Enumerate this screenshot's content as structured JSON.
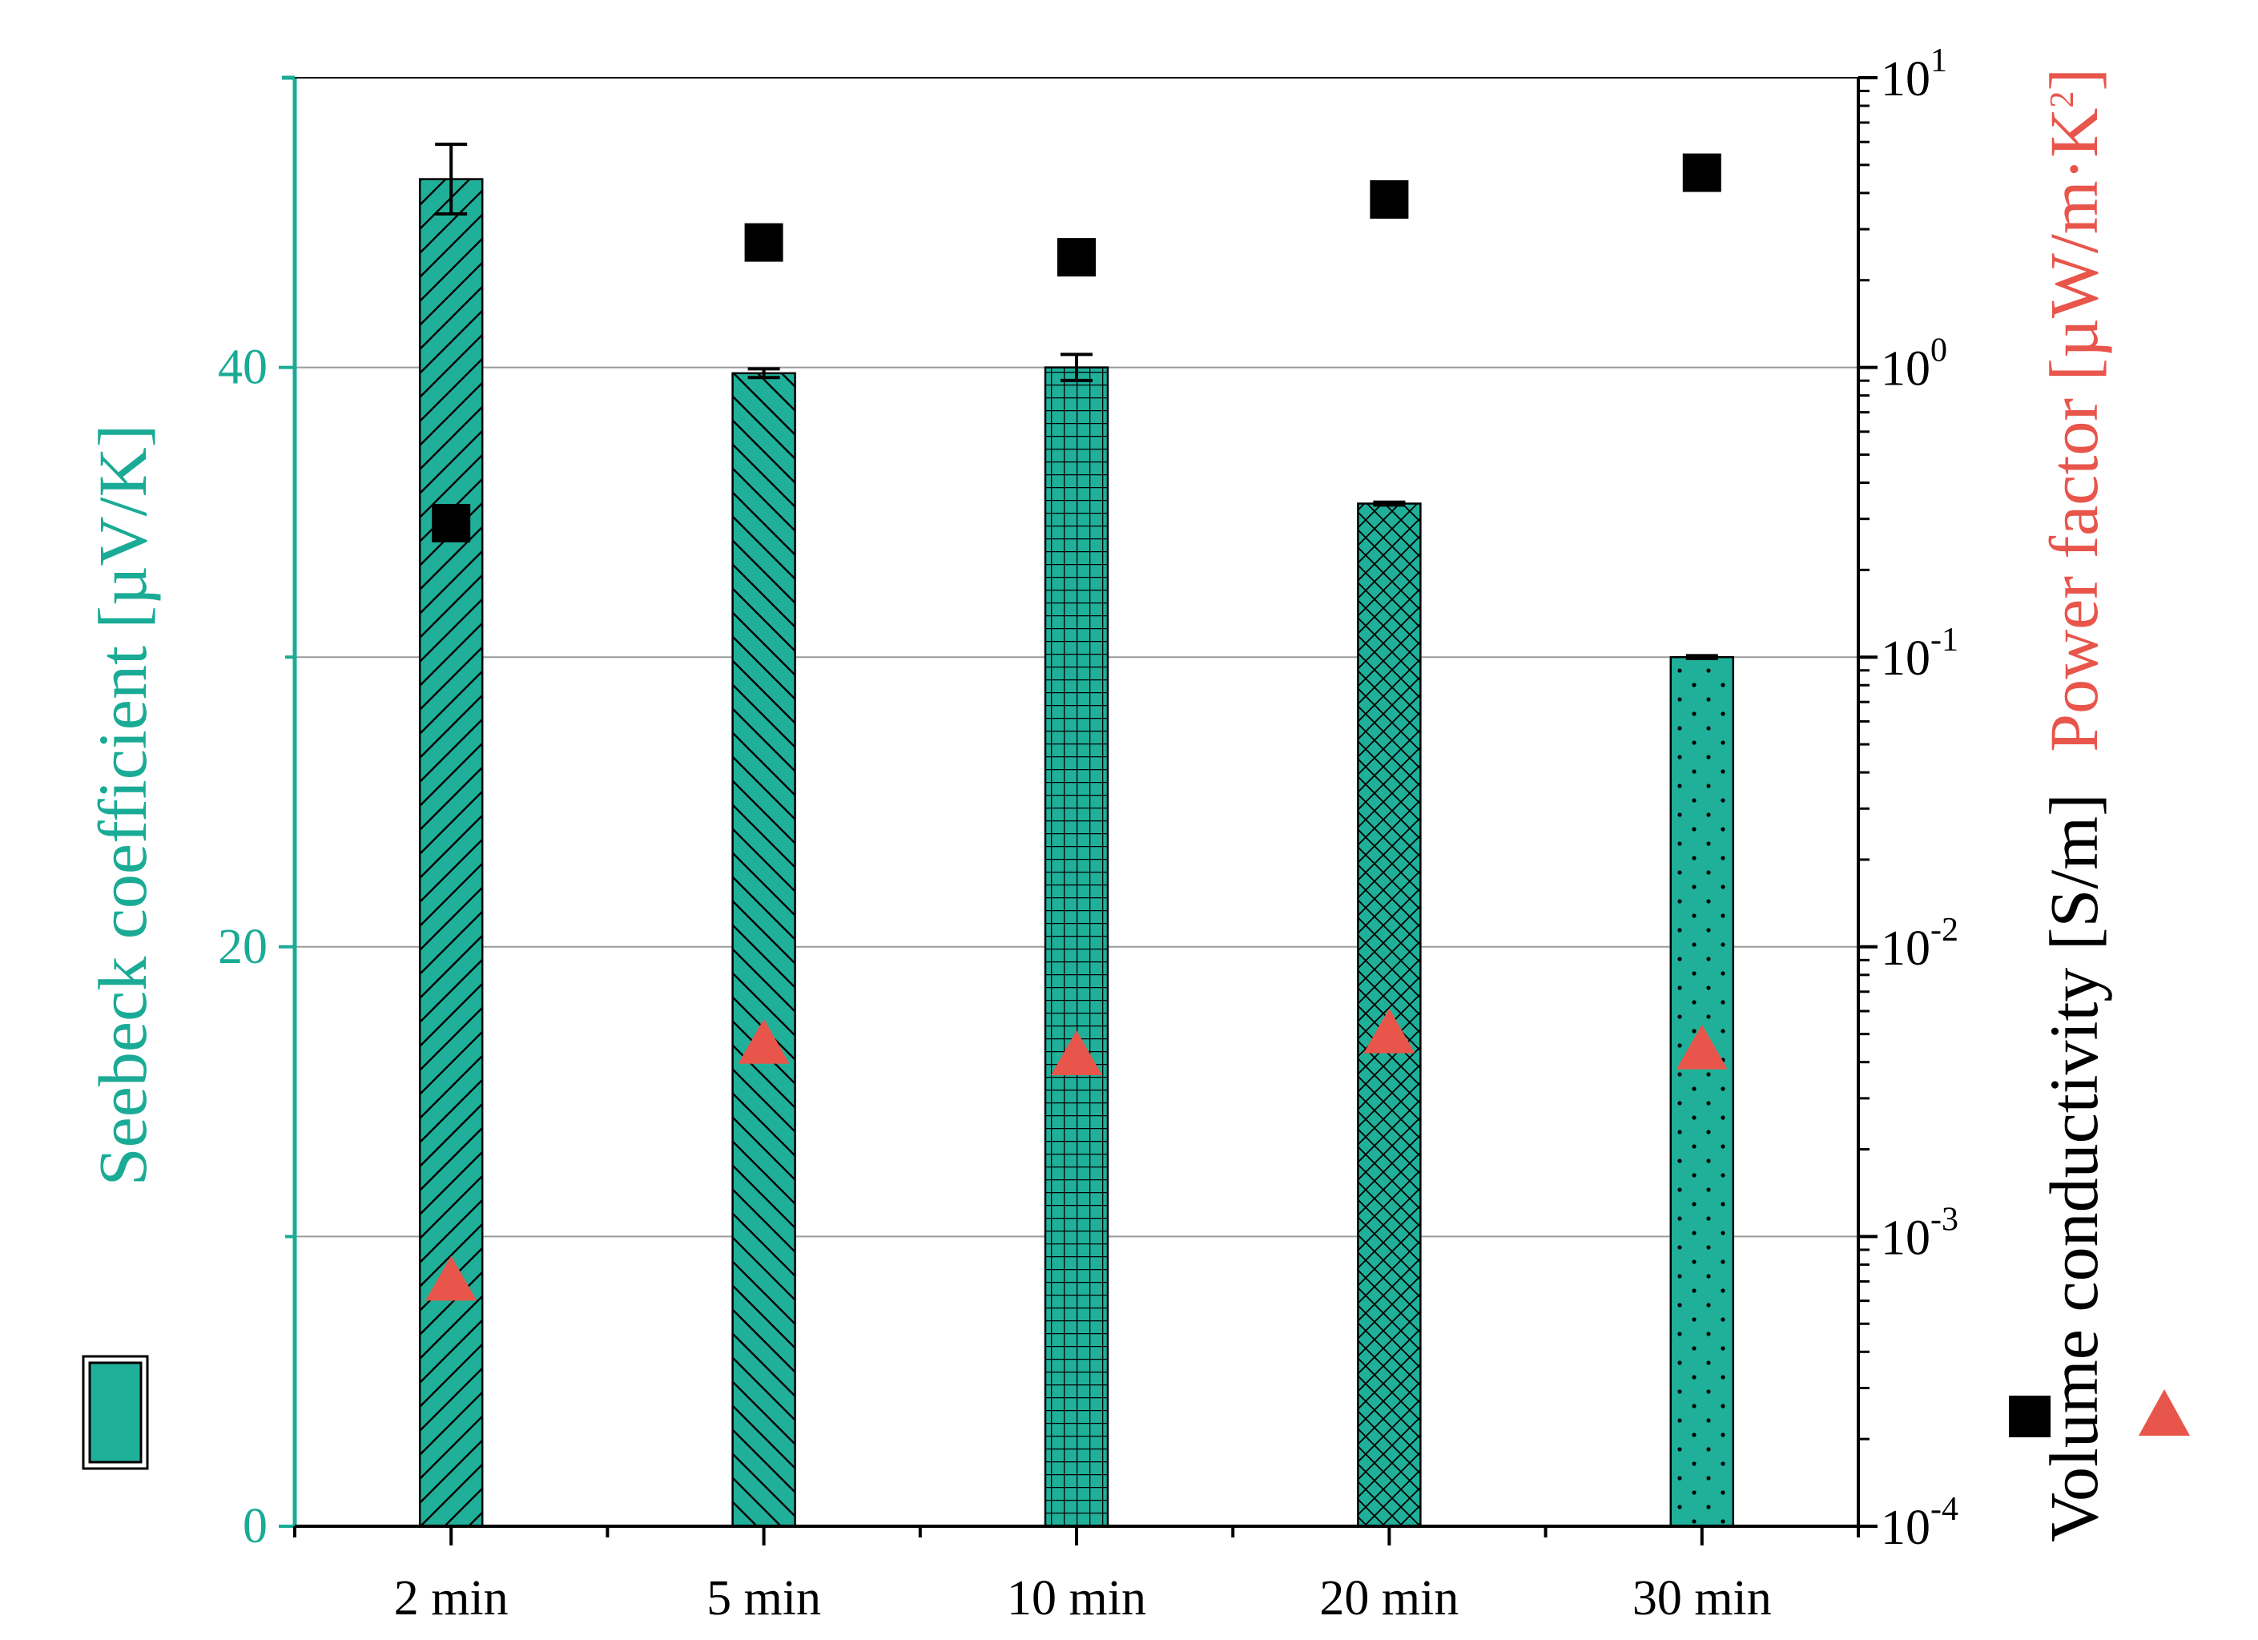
{
  "chart_data": {
    "type": "bar",
    "categories": [
      "2 min",
      "5 min",
      "10 min",
      "20 min",
      "30 min"
    ],
    "left_axis": {
      "label": "Seebeck coefficient [µV/K]",
      "ylim": [
        0,
        50
      ],
      "ticks": [
        0,
        20,
        40
      ],
      "tick_labels": [
        "0",
        "20",
        "40"
      ],
      "grid_values": [
        10,
        20,
        30,
        40,
        50
      ]
    },
    "right_axis": {
      "label_main": "Volume conductivity [S/m]",
      "label_pf_prefix": "Power factor [µW/m·K",
      "label_pf_sup": "2",
      "label_pf_suffix": "]",
      "scale": "log",
      "ylim": [
        0.0001,
        10
      ],
      "ticks": [
        {
          "base": "10",
          "exp": "1",
          "value": 10
        },
        {
          "base": "10",
          "exp": "0",
          "value": 1
        },
        {
          "base": "10",
          "exp": "-1",
          "value": 0.1
        },
        {
          "base": "10",
          "exp": "-2",
          "value": 0.01
        },
        {
          "base": "10",
          "exp": "-3",
          "value": 0.001
        },
        {
          "base": "10",
          "exp": "-4",
          "value": 0.0001
        }
      ]
    },
    "series": [
      {
        "name": "Seebeck coefficient",
        "axis": "left",
        "kind": "bar",
        "values": [
          46.5,
          39.8,
          40.0,
          35.3,
          30.0
        ],
        "errors": [
          1.2,
          0.15,
          0.45,
          0.05,
          0.05
        ],
        "patterns": [
          "diag-up",
          "diag-down",
          "grid",
          "crosshatch",
          "dots"
        ]
      },
      {
        "name": "Volume conductivity",
        "axis": "right",
        "kind": "square",
        "values": [
          0.29,
          2.7,
          2.4,
          3.8,
          4.7
        ]
      },
      {
        "name": "Power factor",
        "axis": "right",
        "kind": "triangle",
        "values": [
          0.0007,
          0.0046,
          0.0042,
          0.005,
          0.0044
        ]
      }
    ],
    "colors": {
      "bar": "#20b09a",
      "left_axis": "#1aab96",
      "conductivity": "#000000",
      "power_factor": "#e8554b",
      "grid": "#9a9a9a"
    }
  }
}
